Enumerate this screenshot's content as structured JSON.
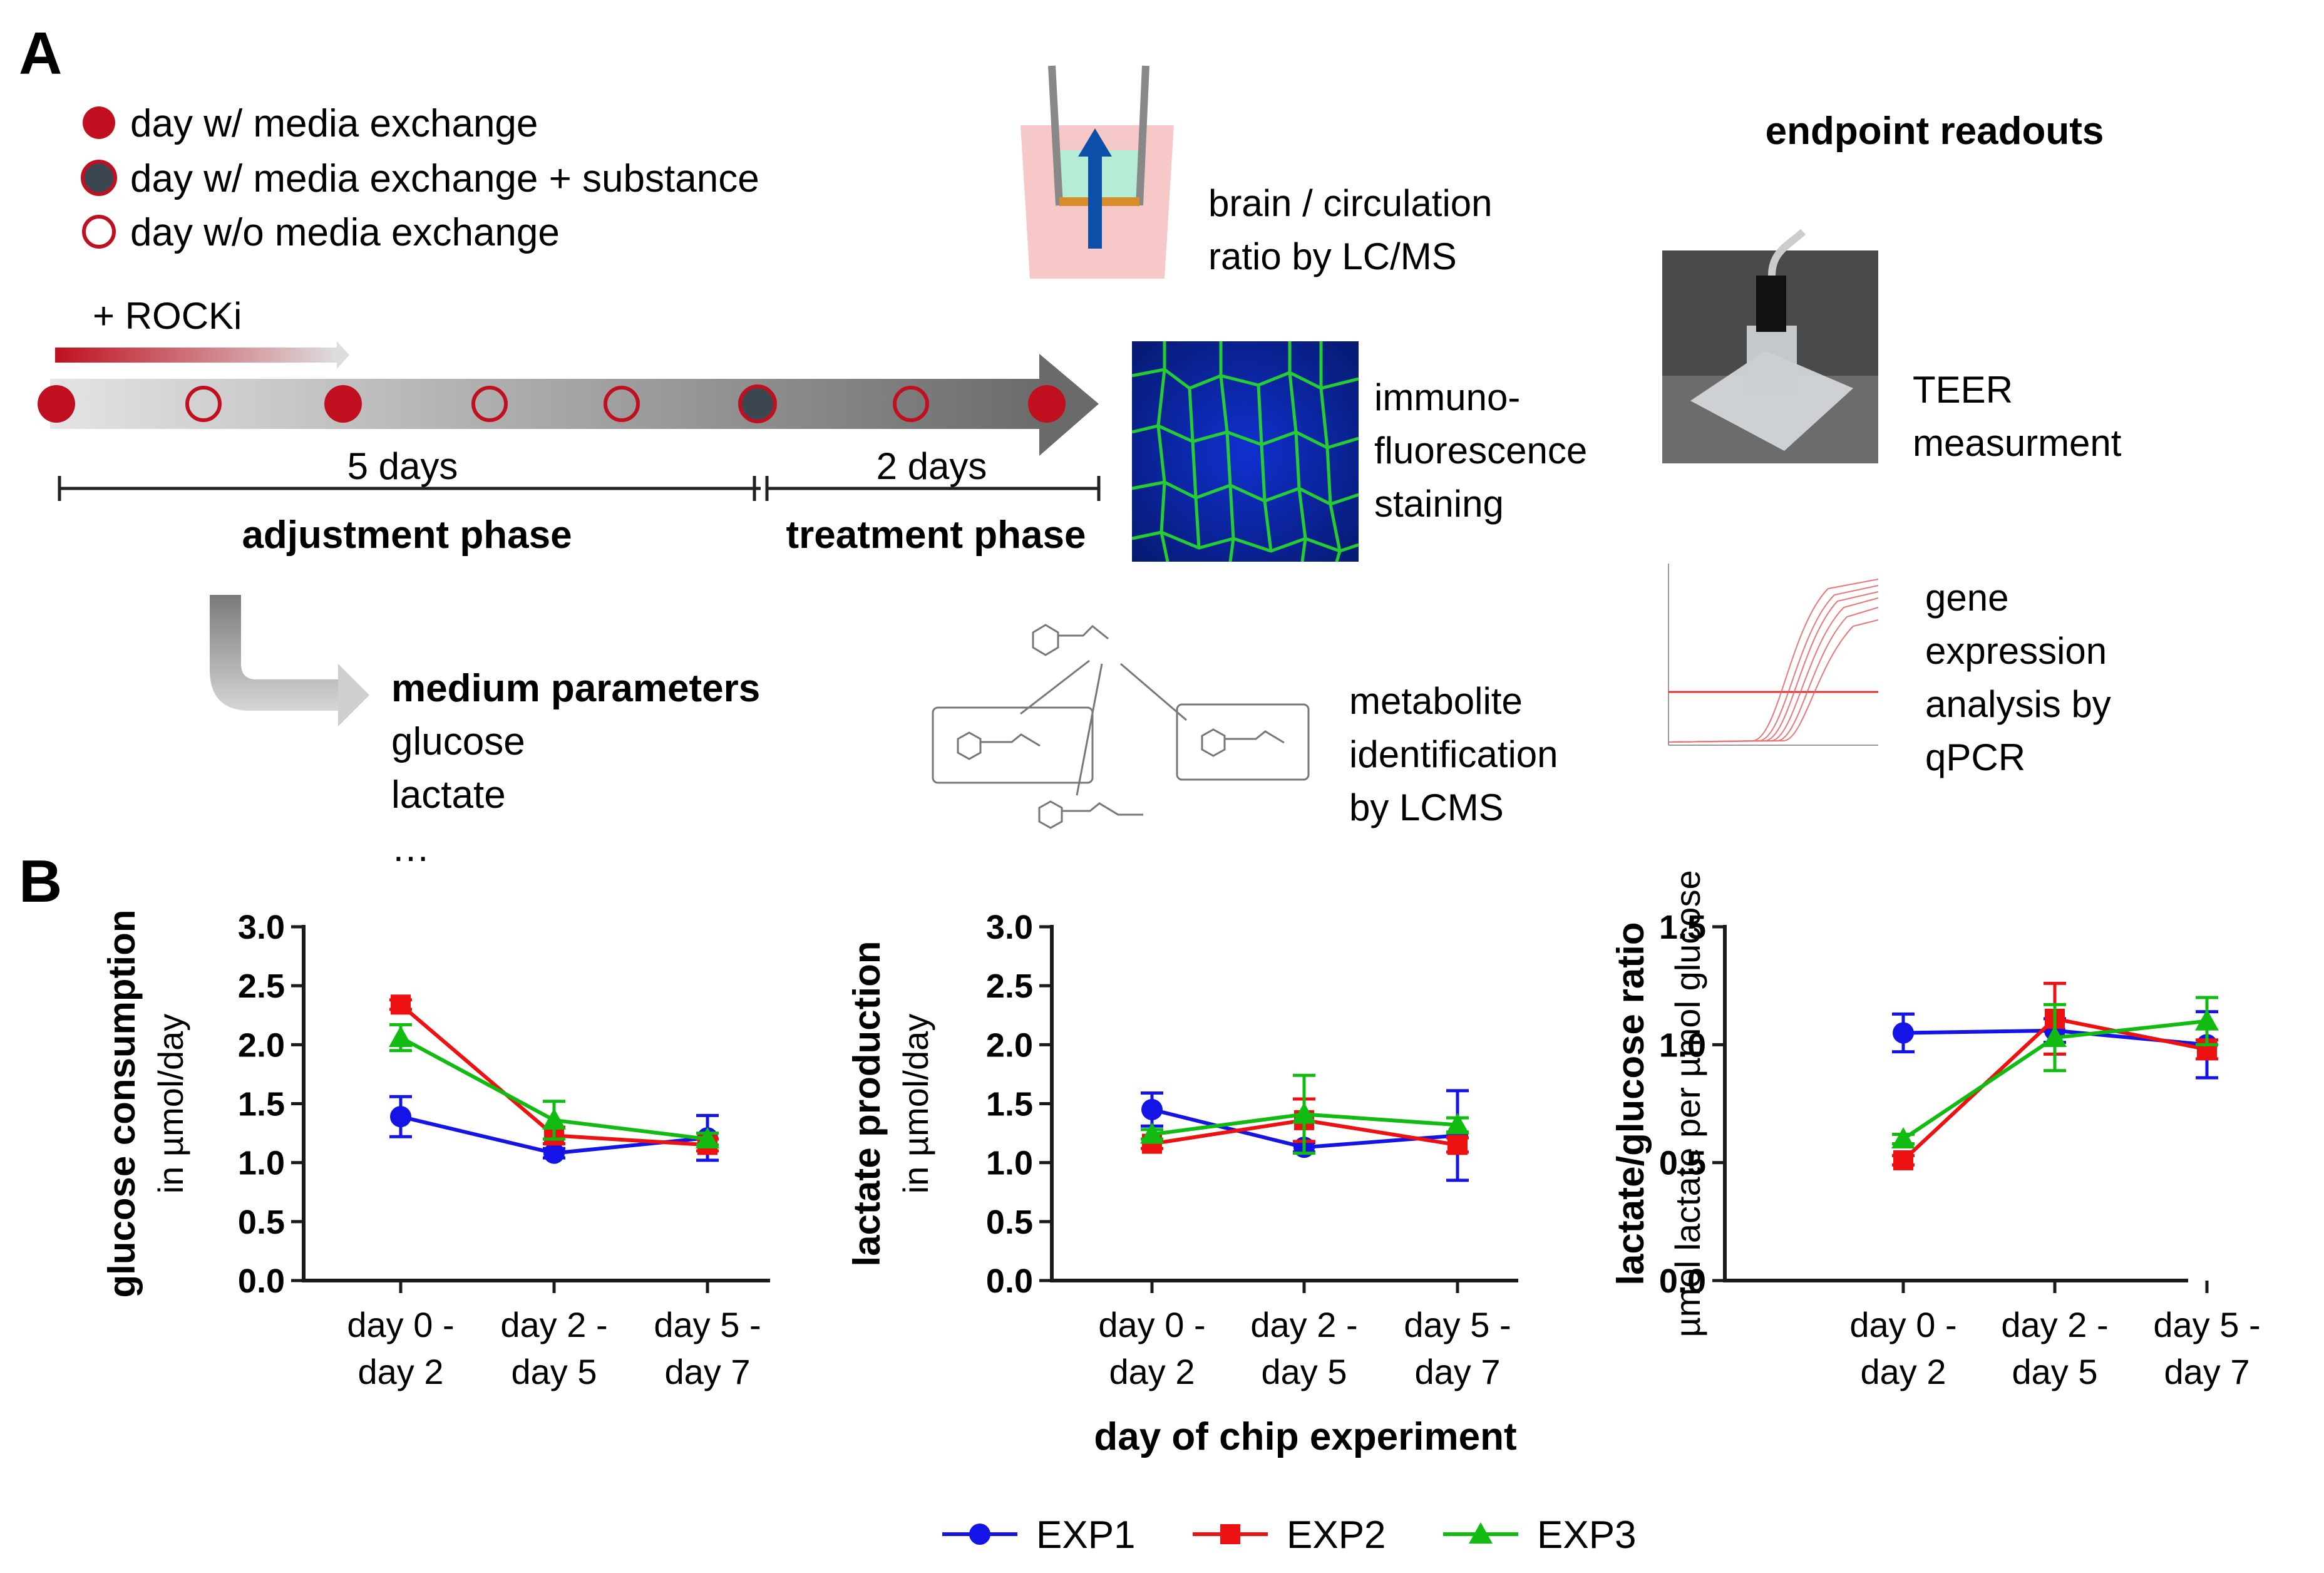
{
  "panel_a": {
    "label": "A",
    "legend": [
      {
        "text": "day w/ media exchange",
        "marker": "filled-red"
      },
      {
        "text": "day w/ media exchange + substance",
        "marker": "filled-grey"
      },
      {
        "text": "day w/o media exchange",
        "marker": "open-red"
      }
    ],
    "rocki_label": "+ ROCKi",
    "span_5": "5 days",
    "span_2": "2 days",
    "phase_adjust": "adjustment phase",
    "phase_treat": "treatment phase",
    "medium_title": "medium parameters",
    "medium_items": [
      "glucose",
      "lactate",
      "…"
    ],
    "brain_ratio": [
      "brain / circulation",
      "ratio by LC/MS"
    ],
    "immuno": [
      "immuno-",
      "fluorescence",
      "staining"
    ],
    "metabolite": [
      "metabolite",
      "identification",
      "by LCMS"
    ],
    "endpoint_title": "endpoint readouts",
    "teer": [
      "TEER",
      "measurment"
    ],
    "gene": [
      "gene",
      "expression",
      "analysis by",
      "qPCR"
    ]
  },
  "panel_b": {
    "label": "B",
    "x_title": "day of chip experiment"
  },
  "colors": {
    "EXP1": "#1414e6",
    "EXP2": "#ee1111",
    "EXP3": "#11bb11",
    "accent_red": "#c0101f",
    "grey_dot": "#3b4650"
  },
  "chart_data": [
    {
      "type": "line",
      "ylabel": "glucose consumption",
      "ylabel_sub": "in µmol/day",
      "categories": [
        [
          "day 0 -",
          "day 2"
        ],
        [
          "day 2 -",
          "day 5"
        ],
        [
          "day 5 -",
          "day 7"
        ]
      ],
      "ylim": [
        0,
        3.0
      ],
      "yticks": [
        "0.0",
        "0.5",
        "1.0",
        "1.5",
        "2.0",
        "2.5",
        "3.0"
      ],
      "series": [
        {
          "name": "EXP1",
          "marker": "circle",
          "values": [
            1.39,
            1.08,
            1.21
          ],
          "errors": [
            0.17,
            0.04,
            0.19
          ]
        },
        {
          "name": "EXP2",
          "marker": "square",
          "values": [
            2.34,
            1.23,
            1.15
          ],
          "errors": [
            0.04,
            0.07,
            0.05
          ]
        },
        {
          "name": "EXP3",
          "marker": "triangle",
          "values": [
            2.06,
            1.36,
            1.2
          ],
          "errors": [
            0.11,
            0.16,
            0.05
          ]
        }
      ]
    },
    {
      "type": "line",
      "ylabel": "lactate production",
      "ylabel_sub": "in µmol/day",
      "categories": [
        [
          "day 0 -",
          "day 2"
        ],
        [
          "day 2 -",
          "day 5"
        ],
        [
          "day 5 -",
          "day 7"
        ]
      ],
      "ylim": [
        0,
        3.0
      ],
      "yticks": [
        "0.0",
        "0.5",
        "1.0",
        "1.5",
        "2.0",
        "2.5",
        "3.0"
      ],
      "series": [
        {
          "name": "EXP1",
          "marker": "circle",
          "values": [
            1.45,
            1.13,
            1.23
          ],
          "errors": [
            0.14,
            0.04,
            0.38
          ]
        },
        {
          "name": "EXP2",
          "marker": "square",
          "values": [
            1.16,
            1.36,
            1.15
          ],
          "errors": [
            0.04,
            0.18,
            0.06
          ]
        },
        {
          "name": "EXP3",
          "marker": "triangle",
          "values": [
            1.24,
            1.41,
            1.32
          ],
          "errors": [
            0.04,
            0.33,
            0.06
          ]
        }
      ]
    },
    {
      "type": "line",
      "ylabel": "lactate/glucose ratio",
      "ylabel_sub": "µmol lactate per µmol glucose",
      "categories": [
        [
          "day 0 -",
          "day 2"
        ],
        [
          "day 2 -",
          "day 5"
        ],
        [
          "day 5 -",
          "day 7"
        ]
      ],
      "ylim": [
        0,
        1.5
      ],
      "yticks": [
        "0.0",
        "0.5",
        "1.0",
        "1.5"
      ],
      "series": [
        {
          "name": "EXP1",
          "marker": "circle",
          "values": [
            1.05,
            1.06,
            1.0
          ],
          "errors": [
            0.08,
            0.05,
            0.14
          ]
        },
        {
          "name": "EXP2",
          "marker": "square",
          "values": [
            0.51,
            1.11,
            0.98
          ],
          "errors": [
            0.02,
            0.15,
            0.04
          ]
        },
        {
          "name": "EXP3",
          "marker": "triangle",
          "values": [
            0.6,
            1.03,
            1.1
          ],
          "errors": [
            0.02,
            0.14,
            0.1
          ]
        }
      ]
    }
  ]
}
